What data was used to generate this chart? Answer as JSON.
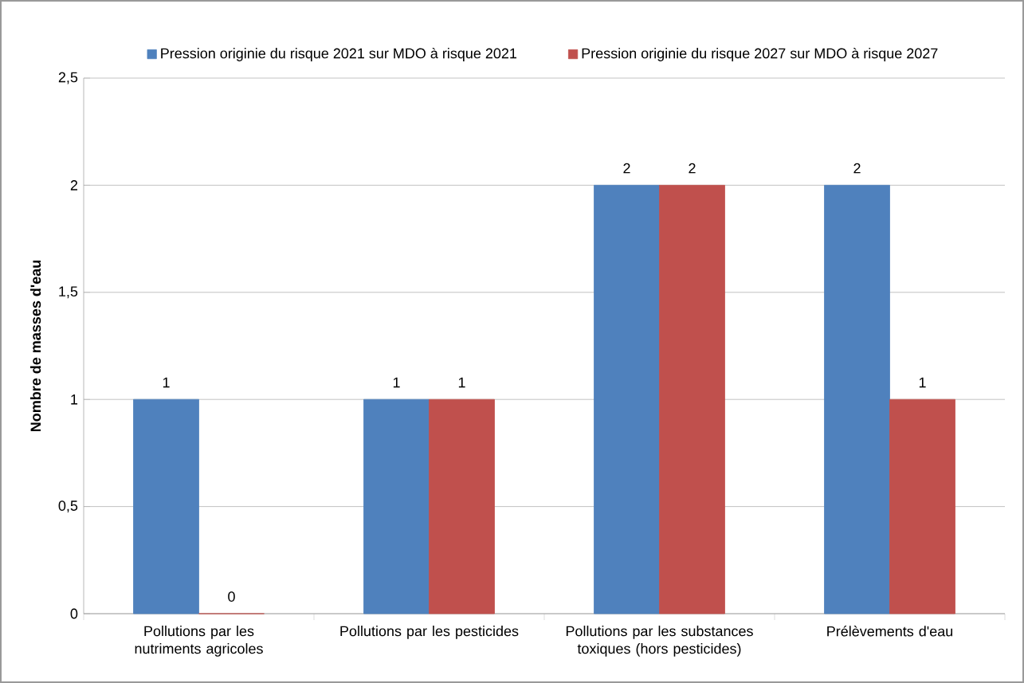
{
  "chart_data": {
    "type": "bar",
    "ylabel": "Nombre de masses d'eau",
    "categories": [
      "Pollutions par les nutriments agricoles",
      "Pollutions par les pesticides",
      "Pollutions par les substances toxiques (hors pesticides)",
      "Prélèvements d'eau"
    ],
    "series": [
      {
        "name": "Pression originie du risque 2021 sur MDO à risque 2021",
        "color": "#4f81bd",
        "values": [
          1,
          1,
          2,
          2
        ]
      },
      {
        "name": "Pression originie du risque 2027 sur MDO à risque 2027",
        "color": "#c0504d",
        "values": [
          0,
          1,
          2,
          1
        ]
      }
    ],
    "ylim": [
      0,
      2.5
    ],
    "yticks": [
      0,
      {
        "value": 0.5,
        "label": "0,5"
      },
      1,
      {
        "value": 1.5,
        "label": "1,5"
      },
      2,
      {
        "value": 2.5,
        "label": "2,5"
      }
    ],
    "grid": "y",
    "legend": "top",
    "data_labels": true
  }
}
